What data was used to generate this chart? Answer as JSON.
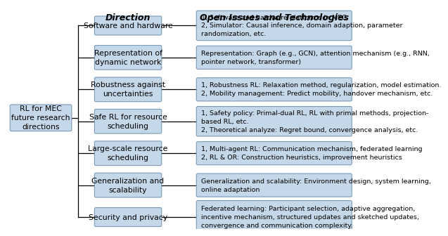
{
  "title_direction": "Direction",
  "title_issues": "Open Issues and Technologies",
  "root_label": "RL for MEC\nfuture research\ndirections",
  "directions": [
    "Software and hardware",
    "Representation of\ndynamic network",
    "Robustness against\nuncertainties",
    "Safe RL for resource\nscheduling",
    "Large-scale resource\nscheduling",
    "Generalization and\nscalability",
    "Security and privacy"
  ],
  "issues": [
    "1, Software and hardware platforms in MEC\n2, Simulator: Causal inference, domain adaption, parameter\nrandomization, etc.",
    "Representation: Graph (e.g., GCN), attention mechanism (e.g., RNN,\npointer network, transformer)",
    "1, Robustness RL: Relaxation method, regularization, model estimation.\n2, Mobility management: Predict mobility, handover mechanism, etc.",
    "1, Safety policy: Primal-dual RL, RL with primal methods, projection-\nbased RL, etc.\n2, Theoretical analyze: Regret bound, convergence analysis, etc.",
    "1, Multi-agent RL: Communication mechanism, federated learning\n2, RL & OR: Construction heuristics, improvement heuristics",
    "Generalization and scalability: Environment design, system learning,\nonline adaptation",
    "Federated learning: Participant selection, adaptive aggregation,\nincentive mechanism, structured updates and sketched updates,\nconvergence and communication complexity."
  ],
  "box_facecolor": "#c5d8ea",
  "box_edgecolor": "#7a9ab8",
  "root_facecolor": "#c5d8ea",
  "root_edgecolor": "#7a9ab8",
  "bg_color": "#ffffff",
  "text_color": "#000000",
  "line_color": "#000000",
  "direction_fontsize": 7.8,
  "issues_fontsize": 6.8,
  "header_fontsize": 9.0,
  "root_fontsize": 7.8
}
